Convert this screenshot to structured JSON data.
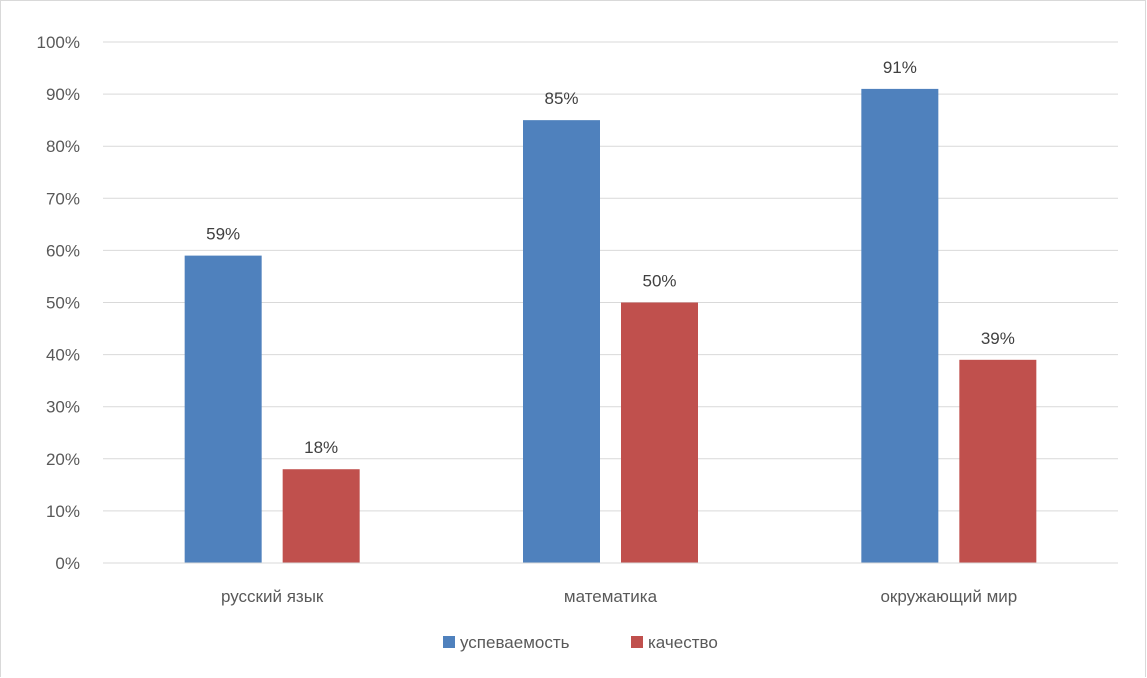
{
  "chart_data": {
    "type": "bar",
    "title": "",
    "xlabel": "",
    "ylabel": "",
    "categories": [
      "русский язык",
      "математика",
      "окружающий мир"
    ],
    "series": [
      {
        "name": "успеваемость",
        "values": [
          59,
          85,
          91
        ],
        "color": "#4f81bd"
      },
      {
        "name": "качество",
        "values": [
          18,
          50,
          39
        ],
        "color": "#c0504d"
      }
    ],
    "ylim": [
      0,
      100
    ],
    "yticks": [
      0,
      10,
      20,
      30,
      40,
      50,
      60,
      70,
      80,
      90,
      100
    ],
    "tick_suffix": "%",
    "grid": true,
    "legend_position": "bottom",
    "data_labels": [
      "59%",
      "18%",
      "85%",
      "50%",
      "91%",
      "39%"
    ],
    "tick_labels": [
      "0%",
      "10%",
      "20%",
      "30%",
      "40%",
      "50%",
      "60%",
      "70%",
      "80%",
      "90%",
      "100%"
    ]
  }
}
